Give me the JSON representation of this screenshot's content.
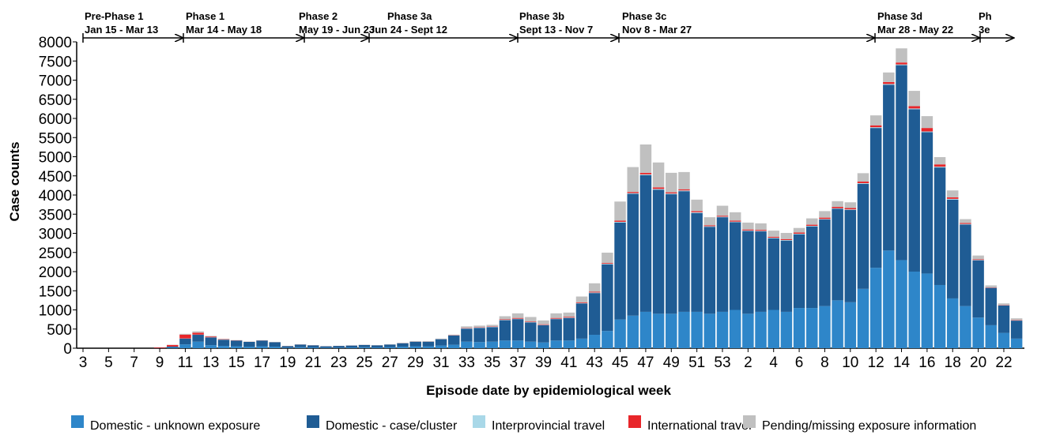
{
  "chart_data": {
    "type": "stacked-bar",
    "y_label": "Case counts",
    "x_label": "Episode date by epidemiological week",
    "categories": [
      "3",
      null,
      "5",
      null,
      "7",
      null,
      "9",
      null,
      "11",
      null,
      "13",
      null,
      "15",
      null,
      "17",
      null,
      "19",
      null,
      "21",
      null,
      "23",
      null,
      "25",
      null,
      "27",
      null,
      "29",
      null,
      "31",
      null,
      "33",
      null,
      "35",
      null,
      "37",
      null,
      "39",
      null,
      "41",
      null,
      "43",
      null,
      "45",
      null,
      "47",
      null,
      "49",
      null,
      "51",
      null,
      "53",
      null,
      "2",
      null,
      "4",
      null,
      "6",
      null,
      "8",
      null,
      "10",
      null,
      "12",
      null,
      "14",
      null,
      "16",
      null,
      "18",
      null,
      "20",
      null,
      "22",
      null
    ],
    "series": [
      {
        "name": "Domestic - unknown exposure",
        "color": "#2e86c9",
        "values": [
          0,
          0,
          0,
          0,
          0,
          0,
          0,
          20,
          100,
          170,
          80,
          60,
          50,
          40,
          50,
          40,
          15,
          25,
          20,
          15,
          15,
          20,
          25,
          20,
          30,
          40,
          50,
          50,
          70,
          90,
          170,
          160,
          170,
          200,
          200,
          170,
          150,
          200,
          200,
          250,
          350,
          450,
          750,
          850,
          950,
          900,
          900,
          950,
          950,
          900,
          950,
          1000,
          900,
          950,
          1000,
          950,
          1050,
          1050,
          1100,
          1250,
          1200,
          1550,
          2100,
          2550,
          2300,
          2000,
          1950,
          1650,
          1300,
          1100,
          800,
          600,
          400,
          250
        ]
      },
      {
        "name": "Domestic - case/cluster",
        "color": "#1f5c94",
        "values": [
          0,
          0,
          0,
          0,
          0,
          0,
          5,
          25,
          150,
          180,
          200,
          160,
          150,
          125,
          150,
          115,
          40,
          70,
          55,
          35,
          45,
          50,
          60,
          55,
          65,
          90,
          120,
          120,
          165,
          240,
          340,
          370,
          380,
          530,
          560,
          500,
          450,
          560,
          590,
          920,
          1090,
          1740,
          2530,
          3180,
          3570,
          3240,
          3120,
          3150,
          2580,
          2270,
          2470,
          2290,
          2160,
          2100,
          1870,
          1860,
          1925,
          2130,
          2260,
          2390,
          2410,
          2740,
          3650,
          4330,
          5090,
          4240,
          3690,
          3070,
          2580,
          2130,
          1495,
          975,
          715,
          470
        ]
      },
      {
        "name": "Interprovincial travel",
        "color": "#a9d8e8",
        "values": [
          0,
          0,
          0,
          0,
          0,
          0,
          0,
          0,
          5,
          5,
          5,
          5,
          2,
          2,
          2,
          2,
          0,
          0,
          0,
          0,
          0,
          0,
          0,
          0,
          2,
          2,
          3,
          3,
          3,
          5,
          10,
          10,
          10,
          10,
          10,
          10,
          10,
          10,
          10,
          10,
          15,
          15,
          20,
          20,
          20,
          20,
          20,
          20,
          20,
          15,
          15,
          15,
          15,
          15,
          15,
          15,
          15,
          15,
          15,
          15,
          15,
          20,
          20,
          20,
          20,
          20,
          20,
          20,
          20,
          15,
          10,
          5,
          5,
          5
        ]
      },
      {
        "name": "International travel",
        "color": "#e8262a",
        "values": [
          0,
          0,
          0,
          0,
          0,
          0,
          15,
          40,
          100,
          50,
          20,
          10,
          5,
          3,
          3,
          2,
          2,
          2,
          2,
          1,
          1,
          1,
          1,
          1,
          1,
          2,
          2,
          2,
          3,
          5,
          10,
          10,
          10,
          15,
          20,
          15,
          15,
          20,
          20,
          20,
          20,
          20,
          30,
          30,
          40,
          40,
          30,
          30,
          30,
          25,
          25,
          25,
          25,
          25,
          25,
          25,
          30,
          30,
          35,
          35,
          35,
          40,
          50,
          50,
          50,
          60,
          90,
          60,
          40,
          25,
          15,
          10,
          10,
          10
        ]
      },
      {
        "name": "Pending/missing exposure information",
        "color": "#c0c0c0",
        "values": [
          0,
          0,
          0,
          0,
          0,
          0,
          0,
          5,
          20,
          35,
          15,
          10,
          5,
          5,
          5,
          5,
          3,
          3,
          3,
          2,
          2,
          2,
          4,
          4,
          5,
          5,
          8,
          8,
          10,
          15,
          40,
          40,
          40,
          80,
          120,
          120,
          100,
          120,
          110,
          150,
          220,
          270,
          500,
          650,
          740,
          650,
          510,
          450,
          300,
          210,
          260,
          220,
          180,
          170,
          160,
          160,
          120,
          165,
          170,
          150,
          150,
          220,
          260,
          250,
          370,
          400,
          310,
          190,
          180,
          100,
          100,
          50,
          40,
          45
        ]
      }
    ],
    "ylim": [
      0,
      8000
    ],
    "yticks": [
      0,
      500,
      1000,
      1500,
      2000,
      2500,
      3000,
      3500,
      4000,
      4500,
      5000,
      5500,
      6000,
      6500,
      7000,
      7500,
      8000
    ],
    "phases": [
      {
        "name": "Pre-Phase 1",
        "dates": "Jan 15 - Mar 13"
      },
      {
        "name": "Phase 1",
        "dates": "Mar 14 - May 18"
      },
      {
        "name": "Phase 2",
        "dates": "May 19 - Jun 23"
      },
      {
        "name": "Phase 3a",
        "dates": "Jun 24 - Sept 12"
      },
      {
        "name": "Phase 3b",
        "dates": "Sept 13 - Nov 7"
      },
      {
        "name": "Phase 3c",
        "dates": "Nov 8 - Mar 27"
      },
      {
        "name": "Phase 3d",
        "dates": "Mar 28 - May 22"
      },
      {
        "name": "Ph",
        "dates": "3e"
      }
    ]
  }
}
